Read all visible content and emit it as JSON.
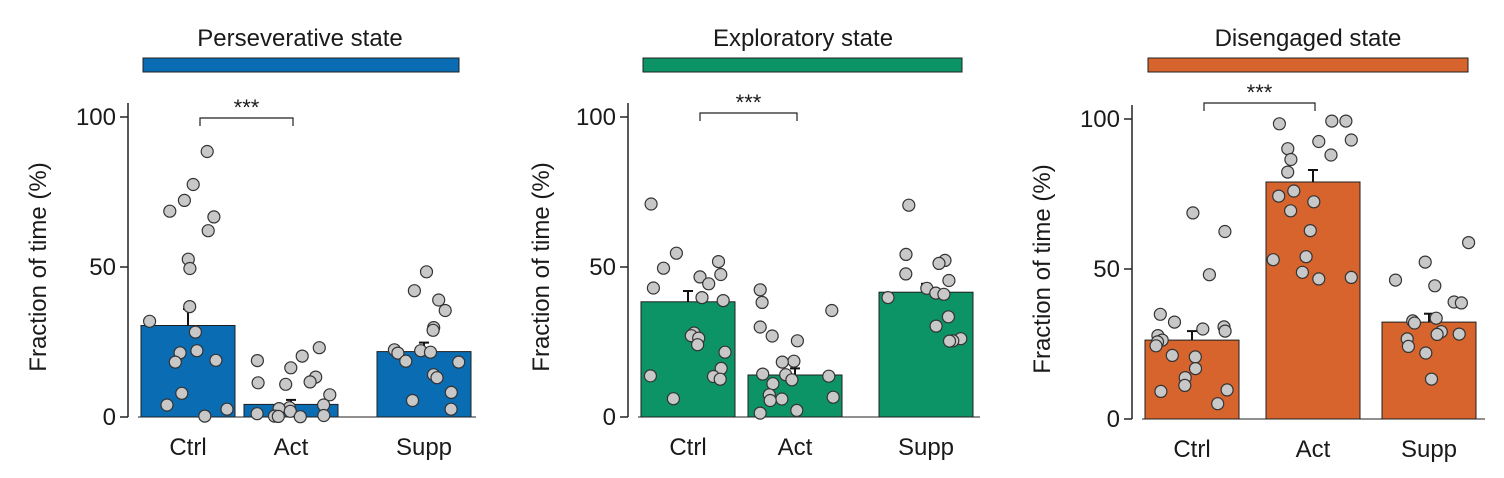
{
  "chart_data": [
    {
      "type": "bar",
      "title": "Perseverative state",
      "ylabel": "Fraction of time (%)",
      "xlabel": "",
      "ylim": [
        0,
        100
      ],
      "yticks": [
        0,
        50,
        100
      ],
      "categories": [
        "Ctrl",
        "Act",
        "Supp"
      ],
      "values": [
        30.5,
        4.2,
        21.8
      ],
      "errors": [
        5.5,
        1.5,
        3.0
      ],
      "color": "#0a6cb3",
      "significance": {
        "between": [
          "Ctrl",
          "Act"
        ],
        "label": "***"
      },
      "points": [
        [
          88.5,
          77.5,
          72.2,
          68.6,
          66.7,
          62.1,
          52.6,
          49.5,
          36.8,
          31.9,
          28.3,
          22.1,
          21.4,
          18.9,
          18.3,
          7.9,
          4.0,
          2.6,
          0.3
        ],
        [
          23.1,
          20.3,
          18.8,
          16.4,
          13.3,
          11.7,
          11.4,
          10.9,
          7.4,
          4.0,
          3.1,
          2.8,
          1.9,
          1.1,
          0.5,
          0.3,
          0.2,
          0.1
        ],
        [
          48.4,
          42.1,
          39.0,
          35.5,
          29.8,
          28.9,
          22.4,
          22.1,
          21.6,
          21.3,
          18.6,
          18.3,
          14.1,
          13.1,
          8.2,
          5.5,
          2.6
        ]
      ]
    },
    {
      "type": "bar",
      "title": "Exploratory state",
      "ylabel": "Fraction of time (%)",
      "xlabel": "",
      "ylim": [
        0,
        100
      ],
      "yticks": [
        0,
        50,
        100
      ],
      "categories": [
        "Ctrl",
        "Act",
        "Supp"
      ],
      "values": [
        38.4,
        14.0,
        41.6
      ],
      "errors": [
        3.6,
        2.2,
        2.8
      ],
      "color": "#0c9467",
      "significance": {
        "between": [
          "Ctrl",
          "Act"
        ],
        "label": "***"
      },
      "points": [
        [
          71.0,
          54.6,
          51.8,
          49.6,
          47.5,
          46.7,
          44.4,
          43.0,
          39.8,
          38.8,
          28.0,
          27.1,
          26.3,
          24.1,
          21.6,
          16.2,
          13.7,
          13.5,
          12.6,
          6.1
        ],
        [
          42.4,
          38.2,
          35.5,
          30.0,
          27.0,
          25.4,
          18.6,
          18.3,
          14.3,
          14.1,
          13.6,
          12.4,
          11.1,
          7.4,
          6.6,
          6.0,
          5.5,
          2.2,
          1.3
        ],
        [
          70.6,
          54.2,
          52.2,
          51.2,
          47.7,
          45.5,
          42.9,
          41.3,
          40.9,
          39.8,
          33.4,
          30.3,
          26.1,
          25.4,
          25.3
        ]
      ]
    },
    {
      "type": "bar",
      "title": "Disengaged state",
      "ylabel": "Fraction of time (%)",
      "xlabel": "",
      "ylim": [
        0,
        100
      ],
      "yticks": [
        0,
        50,
        100
      ],
      "categories": [
        "Ctrl",
        "Act",
        "Supp"
      ],
      "values": [
        26.3,
        79.0,
        32.3
      ],
      "errors": [
        3.0,
        4.0,
        2.8
      ],
      "color": "#d6642c",
      "significance": {
        "between": [
          "Ctrl",
          "Act"
        ],
        "label": "***"
      },
      "points": [
        [
          68.7,
          62.5,
          48.1,
          34.9,
          32.3,
          30.7,
          30.0,
          29.3,
          27.8,
          26.3,
          25.7,
          24.4,
          21.2,
          20.7,
          16.8,
          13.8,
          11.2,
          9.7,
          9.2,
          5.1
        ],
        [
          99.3,
          99.3,
          98.4,
          93.0,
          92.5,
          90.1,
          88.0,
          86.5,
          82.3,
          76.0,
          74.3,
          72.4,
          69.4,
          62.8,
          54.1,
          53.1,
          48.9,
          47.2,
          46.7
        ],
        [
          58.8,
          52.3,
          46.3,
          44.4,
          39.0,
          38.7,
          33.6,
          32.7,
          32.0,
          29.1,
          28.3,
          28.2,
          26.7,
          24.2,
          22.0,
          13.3
        ]
      ]
    }
  ]
}
